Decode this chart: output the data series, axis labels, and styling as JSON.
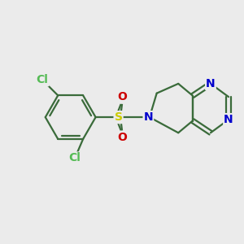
{
  "background_color": "#ebebeb",
  "bond_color": "#3a6b3a",
  "N_color": "#0000cc",
  "S_color": "#cccc00",
  "O_color": "#cc0000",
  "Cl_color": "#55bb55",
  "line_width": 1.6,
  "font_size_atoms": 10,
  "figsize": [
    3.0,
    3.0
  ],
  "dpi": 100,
  "xlim": [
    0,
    10
  ],
  "ylim": [
    0,
    10
  ]
}
